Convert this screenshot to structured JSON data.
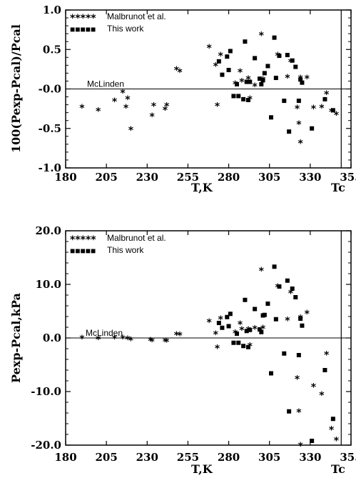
{
  "chart_data": [
    {
      "type": "scatter",
      "xlabel": "T,K",
      "ylabel": "100(Pexp-Pcal)/Pcal",
      "xlim": [
        180,
        355
      ],
      "ylim": [
        -1.0,
        1.0
      ],
      "x_ticks": [
        180,
        205,
        230,
        255,
        280,
        305,
        330,
        355
      ],
      "x_tick_labels": [
        "180",
        "205",
        "230",
        "255",
        "280",
        "305",
        "330",
        "355"
      ],
      "y_ticks": [
        -1.0,
        -0.5,
        0.0,
        0.5,
        1.0
      ],
      "y_tick_labels": [
        "-1.0",
        "-0.5",
        "-0.0",
        "0.5",
        "1.0"
      ],
      "critical_label": "Tc",
      "critical_line_x": 349,
      "reference_label": "McLinden",
      "reference_y": 0,
      "legend_position": "top-left",
      "series": [
        {
          "name": "Malbrunot et al.",
          "marker": "star",
          "legend_marker": "*****",
          "points": [
            [
              190,
              -0.23
            ],
            [
              200,
              -0.27
            ],
            [
              210,
              -0.15
            ],
            [
              215,
              -0.04
            ],
            [
              217,
              -0.23
            ],
            [
              218,
              -0.12
            ],
            [
              220,
              -0.51
            ],
            [
              233,
              -0.34
            ],
            [
              234,
              -0.21
            ],
            [
              241,
              -0.26
            ],
            [
              242,
              -0.21
            ],
            [
              248,
              0.25
            ],
            [
              250,
              0.22
            ],
            [
              268,
              0.53
            ],
            [
              272,
              0.3
            ],
            [
              273,
              -0.21
            ],
            [
              275,
              0.43
            ],
            [
              284,
              0.07
            ],
            [
              287,
              0.22
            ],
            [
              288,
              0.1
            ],
            [
              292,
              0.13
            ],
            [
              293,
              -0.12
            ],
            [
              296,
              0.04
            ],
            [
              300,
              0.69
            ],
            [
              301,
              0.12
            ],
            [
              310,
              0.43
            ],
            [
              316,
              0.15
            ],
            [
              318,
              0.35
            ],
            [
              322,
              -0.24
            ],
            [
              323,
              -0.44
            ],
            [
              324,
              -0.68
            ],
            [
              324,
              0.14
            ],
            [
              328,
              0.14
            ],
            [
              332,
              -0.24
            ],
            [
              337,
              -0.23
            ],
            [
              340,
              -0.06
            ],
            [
              343,
              -0.28
            ],
            [
              346,
              -0.32
            ]
          ]
        },
        {
          "name": "This work",
          "marker": "square",
          "legend_marker": "■■■■■",
          "points": [
            [
              274,
              0.35
            ],
            [
              276,
              0.18
            ],
            [
              279,
              0.41
            ],
            [
              280,
              0.24
            ],
            [
              281,
              0.48
            ],
            [
              283,
              -0.09
            ],
            [
              285,
              0.06
            ],
            [
              286,
              -0.09
            ],
            [
              289,
              -0.13
            ],
            [
              290,
              0.6
            ],
            [
              291,
              0.09
            ],
            [
              292,
              -0.14
            ],
            [
              293,
              0.09
            ],
            [
              296,
              0.39
            ],
            [
              299,
              0.13
            ],
            [
              300,
              0.06
            ],
            [
              301,
              0.11
            ],
            [
              302,
              0.2
            ],
            [
              304,
              0.29
            ],
            [
              306,
              -0.36
            ],
            [
              308,
              0.65
            ],
            [
              309,
              0.14
            ],
            [
              311,
              0.42
            ],
            [
              314,
              -0.15
            ],
            [
              316,
              0.43
            ],
            [
              317,
              -0.54
            ],
            [
              319,
              0.36
            ],
            [
              321,
              0.28
            ],
            [
              323,
              -0.15
            ],
            [
              324,
              0.12
            ],
            [
              325,
              0.08
            ],
            [
              331,
              -0.5
            ],
            [
              339,
              -0.13
            ],
            [
              344,
              -0.27
            ]
          ]
        }
      ]
    },
    {
      "type": "scatter",
      "xlabel": "T,K",
      "ylabel": "Pexp-Pcal,kPa",
      "xlim": [
        180,
        355
      ],
      "ylim": [
        -20.0,
        20.0
      ],
      "x_ticks": [
        180,
        205,
        230,
        255,
        280,
        305,
        330,
        355
      ],
      "x_tick_labels": [
        "180",
        "205",
        "230",
        "255",
        "280",
        "305",
        "330",
        "355"
      ],
      "y_ticks": [
        -20.0,
        -10.0,
        0.0,
        10.0,
        20.0
      ],
      "y_tick_labels": [
        "-20.0",
        "-10.0",
        "0.0",
        "10.0",
        "20.0"
      ],
      "critical_label": "Tc",
      "critical_line_x": 349,
      "reference_label": "McLinden",
      "reference_y": 0,
      "legend_position": "top-left",
      "series": [
        {
          "name": "Malbrunot et al.",
          "marker": "star",
          "legend_marker": "*****",
          "points": [
            [
              190,
              0.0
            ],
            [
              200,
              -0.1
            ],
            [
              210,
              0.0
            ],
            [
              215,
              0.0
            ],
            [
              218,
              -0.1
            ],
            [
              220,
              -0.3
            ],
            [
              232,
              -0.4
            ],
            [
              233,
              -0.5
            ],
            [
              241,
              -0.5
            ],
            [
              242,
              -0.6
            ],
            [
              248,
              0.7
            ],
            [
              250,
              0.6
            ],
            [
              268,
              3.1
            ],
            [
              272,
              0.8
            ],
            [
              273,
              -1.8
            ],
            [
              275,
              3.6
            ],
            [
              284,
              1.0
            ],
            [
              287,
              2.7
            ],
            [
              288,
              1.6
            ],
            [
              292,
              1.6
            ],
            [
              293,
              -1.4
            ],
            [
              296,
              1.8
            ],
            [
              300,
              12.7
            ],
            [
              301,
              1.9
            ],
            [
              310,
              9.6
            ],
            [
              316,
              3.4
            ],
            [
              318,
              8.5
            ],
            [
              322,
              -7.5
            ],
            [
              323,
              -13.7
            ],
            [
              324,
              -20.0
            ],
            [
              324,
              3.8
            ],
            [
              328,
              4.7
            ],
            [
              332,
              -9.0
            ],
            [
              337,
              -10.5
            ],
            [
              340,
              -3.0
            ],
            [
              343,
              -17.0
            ],
            [
              346,
              -19.0
            ]
          ]
        },
        {
          "name": "This work",
          "marker": "square",
          "legend_marker": "■■■■■",
          "points": [
            [
              274,
              2.8
            ],
            [
              276,
              1.9
            ],
            [
              279,
              3.9
            ],
            [
              280,
              2.2
            ],
            [
              281,
              4.5
            ],
            [
              283,
              -0.9
            ],
            [
              285,
              0.8
            ],
            [
              286,
              -0.9
            ],
            [
              289,
              -1.5
            ],
            [
              290,
              7.1
            ],
            [
              291,
              1.3
            ],
            [
              292,
              -1.7
            ],
            [
              293,
              1.5
            ],
            [
              296,
              5.4
            ],
            [
              299,
              1.6
            ],
            [
              300,
              1.1
            ],
            [
              301,
              4.2
            ],
            [
              302,
              4.3
            ],
            [
              304,
              6.4
            ],
            [
              306,
              -6.6
            ],
            [
              308,
              13.3
            ],
            [
              309,
              3.5
            ],
            [
              311,
              9.6
            ],
            [
              314,
              -2.9
            ],
            [
              316,
              10.7
            ],
            [
              317,
              -13.7
            ],
            [
              319,
              9.2
            ],
            [
              321,
              7.6
            ],
            [
              323,
              -3.2
            ],
            [
              324,
              3.6
            ],
            [
              325,
              2.3
            ],
            [
              331,
              -19.2
            ],
            [
              339,
              -6.0
            ],
            [
              344,
              -15.1
            ]
          ]
        }
      ]
    }
  ]
}
